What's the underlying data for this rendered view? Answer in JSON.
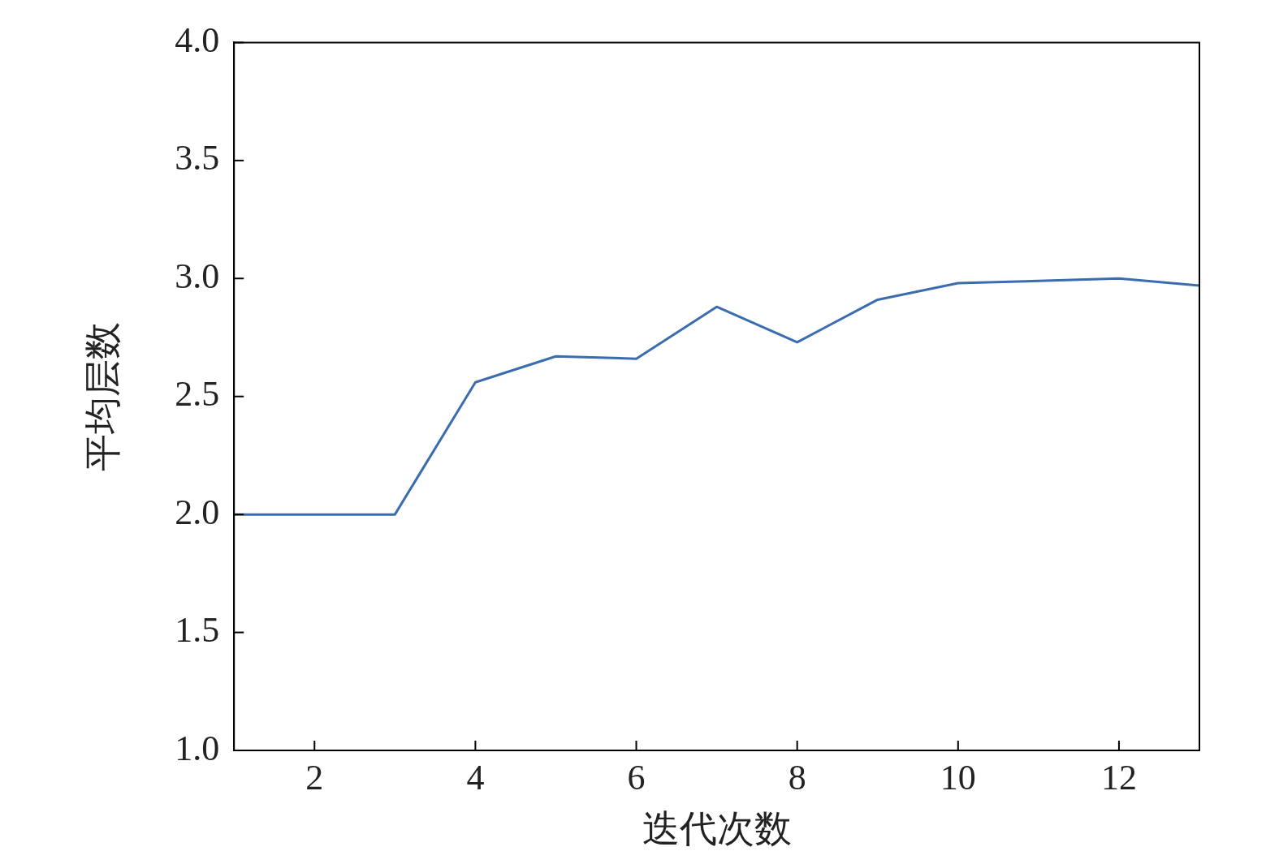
{
  "chart_data": {
    "type": "line",
    "xlabel": "迭代次数",
    "ylabel": "平均层数",
    "x": [
      1,
      2,
      3,
      4,
      5,
      6,
      7,
      8,
      9,
      10,
      11,
      12,
      13
    ],
    "series": [
      {
        "color": "#3b6cb0",
        "values": [
          2.0,
          2.0,
          2.0,
          2.56,
          2.67,
          2.66,
          2.88,
          2.73,
          2.91,
          2.98,
          2.99,
          3.0,
          2.97
        ]
      }
    ],
    "xlim": [
      1,
      13
    ],
    "xticks": [
      2,
      4,
      6,
      8,
      10,
      12
    ],
    "ylim": [
      1,
      4
    ],
    "yticks": [
      {
        "value": 1,
        "label": "1.0"
      },
      {
        "value": 1.5,
        "label": "1.5"
      },
      {
        "value": 2,
        "label": "2.0"
      },
      {
        "value": 2.5,
        "label": "2.5"
      },
      {
        "value": 3,
        "label": "3.0"
      },
      {
        "value": 3.5,
        "label": "3.5"
      },
      {
        "value": 4,
        "label": "4.0"
      }
    ],
    "legend": false,
    "marker": "none",
    "line_style": "solid"
  }
}
